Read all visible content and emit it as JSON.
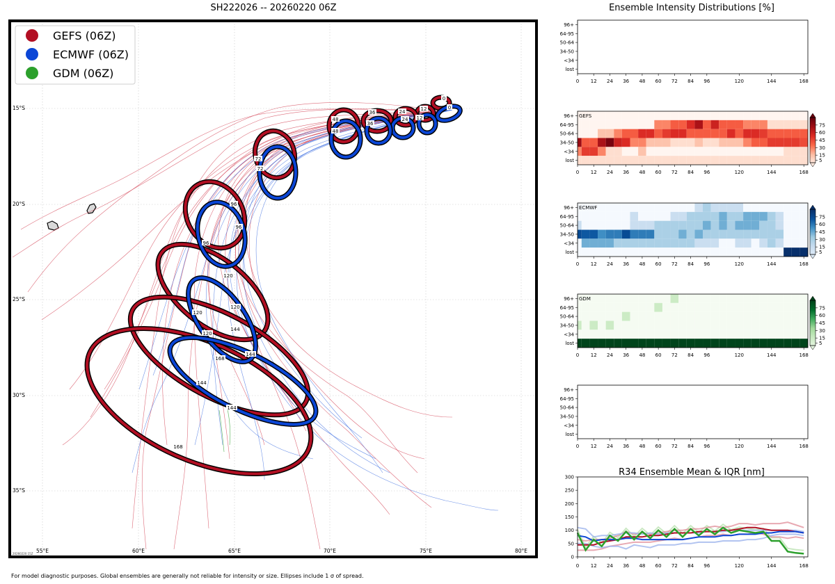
{
  "map": {
    "title": "SH222026 -- 20260220 06Z",
    "stamp": "20260220 15Z",
    "footer": "For model diagnostic purposes. Global ensembles are generally not reliable for intensity or size. Ellipses include 1 σ of spread.",
    "lon_labels": [
      "55°E",
      "60°E",
      "65°E",
      "70°E",
      "75°E",
      "80°E"
    ],
    "lat_labels": [
      "15°S",
      "20°S",
      "25°S",
      "30°S",
      "35°S"
    ],
    "legend": [
      {
        "label": "GEFS (06Z)",
        "color": "#b20f23"
      },
      {
        "label": "ECMWF (06Z)",
        "color": "#0b46d6"
      },
      {
        "label": "GDM (06Z)",
        "color": "#2ca02c"
      }
    ],
    "ellipse_labels": [
      "0",
      "12",
      "24",
      "36",
      "48",
      "72",
      "96",
      "120",
      "144",
      "168"
    ]
  },
  "right": {
    "title": "Ensemble Intensity Distributions [%]",
    "row_labels": [
      "96+",
      "64-95",
      "50-64",
      "34-50",
      "<34",
      "lost"
    ],
    "x_ticks": [
      "0",
      "12",
      "24",
      "36",
      "48",
      "60",
      "72",
      "84",
      "96",
      "120",
      "144",
      "168"
    ],
    "panels": [
      {
        "name": "",
        "cmap": "none",
        "colorbar": []
      },
      {
        "name": "GEFS",
        "cmap": "red",
        "colorbar": [
          "75",
          "60",
          "45",
          "30",
          "15",
          "5"
        ]
      },
      {
        "name": "ECMWF",
        "cmap": "blue",
        "colorbar": [
          "75",
          "60",
          "45",
          "30",
          "15",
          "5"
        ]
      },
      {
        "name": "GDM",
        "cmap": "green",
        "colorbar": [
          "75",
          "60",
          "45",
          "30",
          "15",
          "5"
        ]
      },
      {
        "name": "",
        "cmap": "none",
        "colorbar": []
      }
    ],
    "r34_title": "R34 Ensemble Mean & IQR [nm]",
    "r34_y_ticks": [
      "0",
      "50",
      "100",
      "150",
      "200",
      "250",
      "300"
    ]
  },
  "chart_data": [
    {
      "type": "heatmap",
      "title": "GEFS",
      "rows": [
        "96+",
        "64-95",
        "50-64",
        "34-50",
        "<34",
        "lost"
      ],
      "lead_hours": [
        0,
        6,
        12,
        18,
        24,
        30,
        36,
        42,
        48,
        54,
        60,
        66,
        72,
        78,
        84,
        90,
        96,
        102,
        108,
        114,
        120,
        126,
        132,
        138,
        144,
        150,
        156,
        162,
        168
      ],
      "values": [
        [
          0,
          0,
          0,
          0,
          0,
          0,
          0,
          0,
          0,
          0,
          0,
          0,
          0,
          0,
          0,
          0,
          0,
          0,
          0,
          0,
          0,
          0,
          0,
          0,
          0,
          0,
          0,
          0,
          0
        ],
        [
          0,
          0,
          0,
          0,
          0,
          0,
          0,
          0,
          0,
          0,
          30,
          30,
          40,
          40,
          55,
          70,
          40,
          60,
          40,
          40,
          40,
          30,
          30,
          30,
          5,
          5,
          5,
          5,
          5
        ],
        [
          0,
          0,
          0,
          15,
          15,
          30,
          40,
          40,
          55,
          55,
          40,
          50,
          55,
          55,
          40,
          40,
          40,
          40,
          40,
          55,
          40,
          55,
          55,
          50,
          40,
          40,
          40,
          40,
          40
        ],
        [
          75,
          40,
          40,
          70,
          85,
          60,
          55,
          30,
          30,
          15,
          15,
          15,
          5,
          5,
          5,
          15,
          5,
          5,
          15,
          15,
          15,
          30,
          40,
          40,
          50,
          50,
          50,
          50,
          45
        ],
        [
          30,
          50,
          50,
          30,
          5,
          5,
          0,
          0,
          15,
          0,
          0,
          0,
          0,
          0,
          0,
          0,
          0,
          0,
          0,
          0,
          0,
          0,
          0,
          0,
          0,
          0,
          5,
          5,
          5
        ],
        [
          5,
          5,
          5,
          5,
          5,
          5,
          5,
          5,
          5,
          5,
          5,
          5,
          5,
          5,
          5,
          5,
          5,
          5,
          5,
          5,
          5,
          5,
          5,
          5,
          5,
          5,
          5,
          5,
          5
        ]
      ],
      "colorbar_ticks": [
        5,
        15,
        30,
        45,
        60,
        75
      ]
    },
    {
      "type": "heatmap",
      "title": "ECMWF",
      "rows": [
        "96+",
        "64-95",
        "50-64",
        "34-50",
        "<34",
        "lost"
      ],
      "lead_hours": [
        0,
        6,
        12,
        18,
        24,
        30,
        36,
        42,
        48,
        54,
        60,
        66,
        72,
        78,
        84,
        90,
        96,
        102,
        108,
        114,
        120,
        126,
        132,
        138,
        144,
        150,
        156,
        162,
        168
      ],
      "values": [
        [
          0,
          0,
          0,
          0,
          0,
          0,
          0,
          0,
          0,
          0,
          0,
          0,
          0,
          0,
          0,
          15,
          30,
          15,
          15,
          15,
          15,
          0,
          0,
          0,
          0,
          0,
          0,
          0,
          0
        ],
        [
          0,
          0,
          0,
          0,
          0,
          0,
          0,
          15,
          0,
          0,
          0,
          0,
          15,
          15,
          30,
          30,
          30,
          30,
          45,
          30,
          30,
          45,
          45,
          45,
          30,
          15,
          0,
          0,
          0
        ],
        [
          15,
          0,
          0,
          0,
          0,
          0,
          0,
          15,
          15,
          15,
          30,
          30,
          30,
          30,
          30,
          30,
          45,
          30,
          45,
          30,
          45,
          45,
          45,
          30,
          30,
          15,
          0,
          0,
          0
        ],
        [
          75,
          70,
          70,
          55,
          60,
          60,
          75,
          60,
          60,
          60,
          30,
          30,
          30,
          45,
          30,
          45,
          30,
          30,
          30,
          30,
          30,
          30,
          30,
          30,
          30,
          30,
          0,
          0,
          0
        ],
        [
          0,
          45,
          45,
          45,
          45,
          30,
          30,
          30,
          30,
          30,
          30,
          30,
          30,
          30,
          30,
          15,
          15,
          15,
          0,
          0,
          15,
          15,
          0,
          15,
          30,
          15,
          0,
          0,
          0
        ],
        [
          0,
          0,
          0,
          0,
          0,
          0,
          0,
          0,
          0,
          0,
          0,
          0,
          0,
          0,
          0,
          0,
          0,
          0,
          0,
          0,
          0,
          0,
          0,
          0,
          0,
          0,
          90,
          90,
          90
        ]
      ],
      "colorbar_ticks": [
        5,
        15,
        30,
        45,
        60,
        75
      ]
    },
    {
      "type": "heatmap",
      "title": "GDM",
      "rows": [
        "96+",
        "64-95",
        "50-64",
        "34-50",
        "<34",
        "lost"
      ],
      "lead_hours": [
        0,
        6,
        12,
        18,
        24,
        30,
        36,
        42,
        48,
        54,
        60,
        66,
        72,
        78,
        84,
        90,
        96,
        102,
        108,
        114,
        120,
        126,
        132,
        138,
        144,
        150,
        156,
        162,
        168
      ],
      "values": [
        [
          0,
          0,
          0,
          0,
          0,
          0,
          0,
          0,
          0,
          0,
          0,
          0,
          15,
          0,
          0,
          0,
          0,
          0,
          0,
          0,
          0,
          0,
          0,
          0,
          0,
          0,
          0,
          0,
          0
        ],
        [
          0,
          0,
          0,
          0,
          0,
          0,
          0,
          0,
          0,
          0,
          15,
          0,
          0,
          0,
          0,
          0,
          0,
          0,
          0,
          0,
          0,
          0,
          0,
          0,
          0,
          0,
          0,
          0,
          0
        ],
        [
          0,
          0,
          0,
          0,
          0,
          0,
          15,
          0,
          0,
          0,
          0,
          0,
          0,
          0,
          0,
          0,
          0,
          0,
          0,
          0,
          0,
          0,
          0,
          0,
          0,
          0,
          0,
          0,
          0
        ],
        [
          15,
          0,
          15,
          0,
          15,
          0,
          0,
          0,
          0,
          0,
          0,
          0,
          0,
          0,
          0,
          0,
          0,
          0,
          0,
          0,
          0,
          0,
          0,
          0,
          0,
          0,
          0,
          0,
          0
        ],
        [
          0,
          0,
          0,
          0,
          0,
          0,
          0,
          0,
          0,
          0,
          0,
          0,
          0,
          0,
          0,
          0,
          0,
          0,
          0,
          0,
          0,
          0,
          0,
          0,
          0,
          0,
          0,
          0,
          0
        ],
        [
          95,
          95,
          95,
          95,
          95,
          95,
          95,
          95,
          95,
          95,
          95,
          95,
          95,
          95,
          95,
          95,
          95,
          95,
          95,
          95,
          95,
          95,
          95,
          95,
          95,
          95,
          95,
          95,
          95
        ]
      ],
      "colorbar_ticks": [
        5,
        15,
        30,
        45,
        60,
        75
      ]
    },
    {
      "type": "line",
      "title": "R34 Ensemble Mean & IQR [nm]",
      "x": [
        0,
        6,
        12,
        18,
        24,
        30,
        36,
        42,
        48,
        54,
        60,
        66,
        72,
        78,
        84,
        90,
        96,
        102,
        108,
        114,
        120,
        126,
        132,
        138,
        144,
        150,
        156,
        162,
        168
      ],
      "ylim": [
        0,
        300
      ],
      "series": [
        {
          "name": "GEFS mean",
          "values": [
            45,
            45,
            45,
            55,
            60,
            65,
            75,
            75,
            75,
            80,
            80,
            85,
            90,
            90,
            90,
            95,
            95,
            95,
            100,
            100,
            105,
            110,
            110,
            105,
            100,
            100,
            100,
            95,
            90
          ]
        },
        {
          "name": "GEFS IQR high",
          "values": [
            65,
            60,
            65,
            65,
            70,
            80,
            95,
            85,
            90,
            85,
            90,
            95,
            100,
            100,
            105,
            105,
            110,
            115,
            110,
            115,
            125,
            125,
            120,
            125,
            125,
            125,
            130,
            120,
            110
          ]
        },
        {
          "name": "GEFS IQR low",
          "values": [
            25,
            25,
            25,
            30,
            40,
            45,
            50,
            55,
            55,
            55,
            60,
            65,
            70,
            65,
            70,
            75,
            80,
            80,
            85,
            80,
            85,
            85,
            90,
            85,
            75,
            75,
            70,
            75,
            70
          ]
        },
        {
          "name": "ECMWF mean",
          "values": [
            80,
            75,
            60,
            65,
            65,
            65,
            70,
            70,
            65,
            65,
            65,
            65,
            65,
            65,
            70,
            75,
            75,
            75,
            80,
            80,
            85,
            85,
            85,
            90,
            90,
            95,
            95,
            95,
            90
          ]
        },
        {
          "name": "ECMWF IQR high",
          "values": [
            110,
            105,
            75,
            80,
            80,
            85,
            90,
            90,
            85,
            90,
            85,
            90,
            90,
            90,
            90,
            90,
            95,
            95,
            95,
            100,
            100,
            100,
            100,
            100,
            100,
            100,
            100,
            100,
            95
          ]
        },
        {
          "name": "ECMWF IQR low",
          "values": [
            50,
            50,
            40,
            35,
            40,
            40,
            30,
            45,
            40,
            35,
            45,
            45,
            45,
            50,
            50,
            55,
            55,
            55,
            60,
            60,
            60,
            65,
            65,
            70,
            80,
            85,
            85,
            85,
            80
          ]
        },
        {
          "name": "GDM",
          "values": [
            90,
            25,
            65,
            40,
            80,
            60,
            95,
            65,
            95,
            70,
            100,
            75,
            105,
            75,
            105,
            80,
            105,
            85,
            110,
            90,
            100,
            95,
            90,
            95,
            60,
            60,
            20,
            15,
            12
          ]
        }
      ]
    }
  ]
}
